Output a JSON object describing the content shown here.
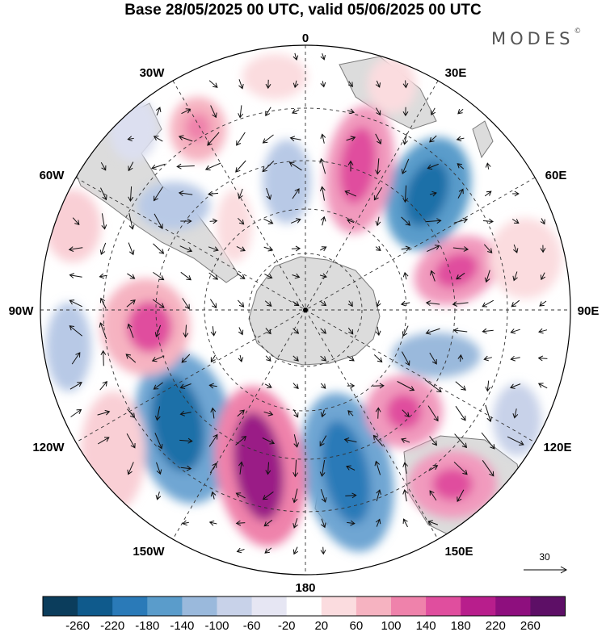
{
  "header": {
    "title": "Base 28/05/2025 00 UTC, valid 05/06/2025 00 UTC",
    "brand": "MODES",
    "brand_mark": "©"
  },
  "map": {
    "projection": "south polar stereographic",
    "longitude_labels": {
      "top": "0",
      "bottom": "180",
      "left": "90W",
      "right": "90E",
      "upper_left_30": "30W",
      "upper_right_30": "30E",
      "upper_left_60": "60W",
      "upper_right_60": "60E",
      "lower_left_120": "120W",
      "lower_right_120": "120E",
      "lower_left_150": "150W",
      "lower_right_150": "150E"
    },
    "reference_vector_label": "30",
    "colors": {
      "land": "#d9d9d9",
      "coast": "#6e6e6e",
      "graticule": "#333333"
    }
  },
  "colorbar": {
    "ticks": [
      "-260",
      "-220",
      "-180",
      "-140",
      "-100",
      "-60",
      "-20",
      "20",
      "60",
      "100",
      "140",
      "180",
      "220",
      "260"
    ],
    "colors": [
      "#0b3d5c",
      "#0f5a8c",
      "#2a7ab8",
      "#5a9ccb",
      "#9ab9dc",
      "#c8d2e9",
      "#e6e6f3",
      "#ffffff",
      "#fbdcdf",
      "#f6b3c1",
      "#ef82ab",
      "#e04e9e",
      "#b81e8c",
      "#8e0f7e",
      "#5d0f66"
    ]
  }
}
